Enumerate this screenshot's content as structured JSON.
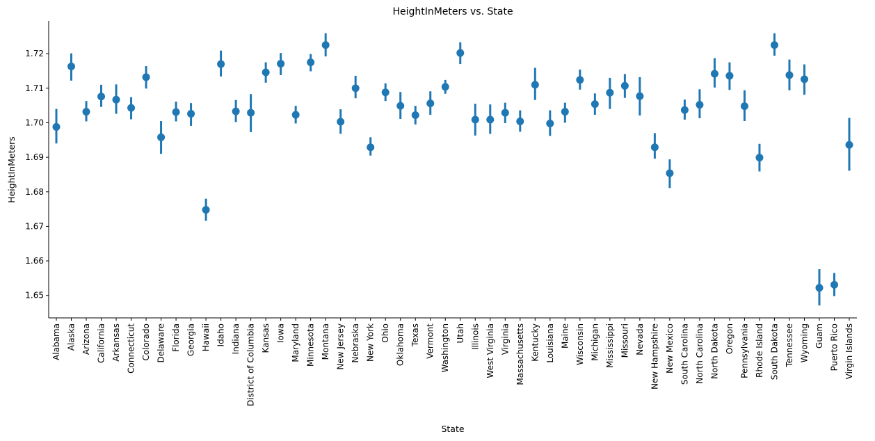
{
  "chart_data": {
    "type": "scatter",
    "title": "HeightInMeters vs. State",
    "xlabel": "State",
    "ylabel": "HeightInMeters",
    "color": "#1f77b4",
    "ylim": [
      1.6435,
      1.7295
    ],
    "yticks": [
      1.65,
      1.66,
      1.67,
      1.68,
      1.69,
      1.7,
      1.71,
      1.72
    ],
    "grid": false,
    "legend": "none",
    "points": [
      {
        "state": "Alabama",
        "value": 1.6988,
        "lo": 1.694,
        "hi": 1.704
      },
      {
        "state": "Alaska",
        "value": 1.7163,
        "lo": 1.7122,
        "hi": 1.7201
      },
      {
        "state": "Arizona",
        "value": 1.7032,
        "lo": 1.7004,
        "hi": 1.7063
      },
      {
        "state": "California",
        "value": 1.7076,
        "lo": 1.7046,
        "hi": 1.711
      },
      {
        "state": "Arkansas",
        "value": 1.7067,
        "lo": 1.7026,
        "hi": 1.7111
      },
      {
        "state": "Connecticut",
        "value": 1.7043,
        "lo": 1.701,
        "hi": 1.7074
      },
      {
        "state": "Colorado",
        "value": 1.7132,
        "lo": 1.7099,
        "hi": 1.7164
      },
      {
        "state": "Delaware",
        "value": 1.6958,
        "lo": 1.691,
        "hi": 1.7005
      },
      {
        "state": "Florida",
        "value": 1.7031,
        "lo": 1.7004,
        "hi": 1.7061
      },
      {
        "state": "Georgia",
        "value": 1.7026,
        "lo": 1.6991,
        "hi": 1.7057
      },
      {
        "state": "Hawaii",
        "value": 1.6748,
        "lo": 1.6716,
        "hi": 1.678
      },
      {
        "state": "Idaho",
        "value": 1.717,
        "lo": 1.7134,
        "hi": 1.7209
      },
      {
        "state": "Indiana",
        "value": 1.7033,
        "lo": 1.7002,
        "hi": 1.7066
      },
      {
        "state": "District of Columbia",
        "value": 1.7029,
        "lo": 1.6973,
        "hi": 1.7083
      },
      {
        "state": "Kansas",
        "value": 1.7146,
        "lo": 1.7116,
        "hi": 1.7175
      },
      {
        "state": "Iowa",
        "value": 1.7171,
        "lo": 1.7138,
        "hi": 1.7202
      },
      {
        "state": "Maryland",
        "value": 1.7023,
        "lo": 1.6998,
        "hi": 1.7049
      },
      {
        "state": "Minnesota",
        "value": 1.7175,
        "lo": 1.7149,
        "hi": 1.7199
      },
      {
        "state": "Montana",
        "value": 1.7225,
        "lo": 1.7192,
        "hi": 1.7259
      },
      {
        "state": "New Jersey",
        "value": 1.7003,
        "lo": 1.6968,
        "hi": 1.7039
      },
      {
        "state": "Nebraska",
        "value": 1.71,
        "lo": 1.7071,
        "hi": 1.7136
      },
      {
        "state": "New York",
        "value": 1.6929,
        "lo": 1.6905,
        "hi": 1.6958
      },
      {
        "state": "Ohio",
        "value": 1.7088,
        "lo": 1.7063,
        "hi": 1.7114
      },
      {
        "state": "Oklahoma",
        "value": 1.7049,
        "lo": 1.7011,
        "hi": 1.7089
      },
      {
        "state": "Texas",
        "value": 1.7022,
        "lo": 1.6995,
        "hi": 1.7049
      },
      {
        "state": "Vermont",
        "value": 1.7056,
        "lo": 1.7023,
        "hi": 1.7091
      },
      {
        "state": "Washington",
        "value": 1.7104,
        "lo": 1.7084,
        "hi": 1.7124
      },
      {
        "state": "Utah",
        "value": 1.7202,
        "lo": 1.717,
        "hi": 1.7233
      },
      {
        "state": "Illinois",
        "value": 1.7009,
        "lo": 1.6963,
        "hi": 1.7055
      },
      {
        "state": "West Virginia",
        "value": 1.7009,
        "lo": 1.6968,
        "hi": 1.7053
      },
      {
        "state": "Virginia",
        "value": 1.7029,
        "lo": 1.6999,
        "hi": 1.7058
      },
      {
        "state": "Massachusetts",
        "value": 1.7004,
        "lo": 1.6974,
        "hi": 1.7036
      },
      {
        "state": "Kentucky",
        "value": 1.711,
        "lo": 1.7066,
        "hi": 1.7159
      },
      {
        "state": "Louisiana",
        "value": 1.6998,
        "lo": 1.6962,
        "hi": 1.7036
      },
      {
        "state": "Maine",
        "value": 1.7032,
        "lo": 1.7,
        "hi": 1.7058
      },
      {
        "state": "Wisconsin",
        "value": 1.7124,
        "lo": 1.7096,
        "hi": 1.7154
      },
      {
        "state": "Michigan",
        "value": 1.7054,
        "lo": 1.7023,
        "hi": 1.7085
      },
      {
        "state": "Mississippi",
        "value": 1.7087,
        "lo": 1.704,
        "hi": 1.713
      },
      {
        "state": "Missouri",
        "value": 1.7107,
        "lo": 1.7072,
        "hi": 1.7141
      },
      {
        "state": "Nevada",
        "value": 1.7077,
        "lo": 1.7021,
        "hi": 1.7132
      },
      {
        "state": "New Hampshire",
        "value": 1.6929,
        "lo": 1.6896,
        "hi": 1.697
      },
      {
        "state": "New Mexico",
        "value": 1.6854,
        "lo": 1.6811,
        "hi": 1.6894
      },
      {
        "state": "South Carolina",
        "value": 1.7037,
        "lo": 1.7009,
        "hi": 1.7067
      },
      {
        "state": "North Carolina",
        "value": 1.7052,
        "lo": 1.7013,
        "hi": 1.7097
      },
      {
        "state": "North Dakota",
        "value": 1.7142,
        "lo": 1.7102,
        "hi": 1.7187
      },
      {
        "state": "Oregon",
        "value": 1.7136,
        "lo": 1.7095,
        "hi": 1.7175
      },
      {
        "state": "Pennsylvania",
        "value": 1.7048,
        "lo": 1.7005,
        "hi": 1.7094
      },
      {
        "state": "Rhode Island",
        "value": 1.6899,
        "lo": 1.6859,
        "hi": 1.6939
      },
      {
        "state": "South Dakota",
        "value": 1.7225,
        "lo": 1.7194,
        "hi": 1.7259
      },
      {
        "state": "Tennessee",
        "value": 1.7138,
        "lo": 1.7094,
        "hi": 1.7183
      },
      {
        "state": "Wyoming",
        "value": 1.7126,
        "lo": 1.7081,
        "hi": 1.7169
      },
      {
        "state": "Guam",
        "value": 1.6522,
        "lo": 1.6471,
        "hi": 1.6576
      },
      {
        "state": "Puerto Rico",
        "value": 1.6531,
        "lo": 1.6498,
        "hi": 1.6565
      },
      {
        "state": "Virgin Islands",
        "value": 1.6936,
        "lo": 1.6861,
        "hi": 1.7014
      }
    ]
  }
}
